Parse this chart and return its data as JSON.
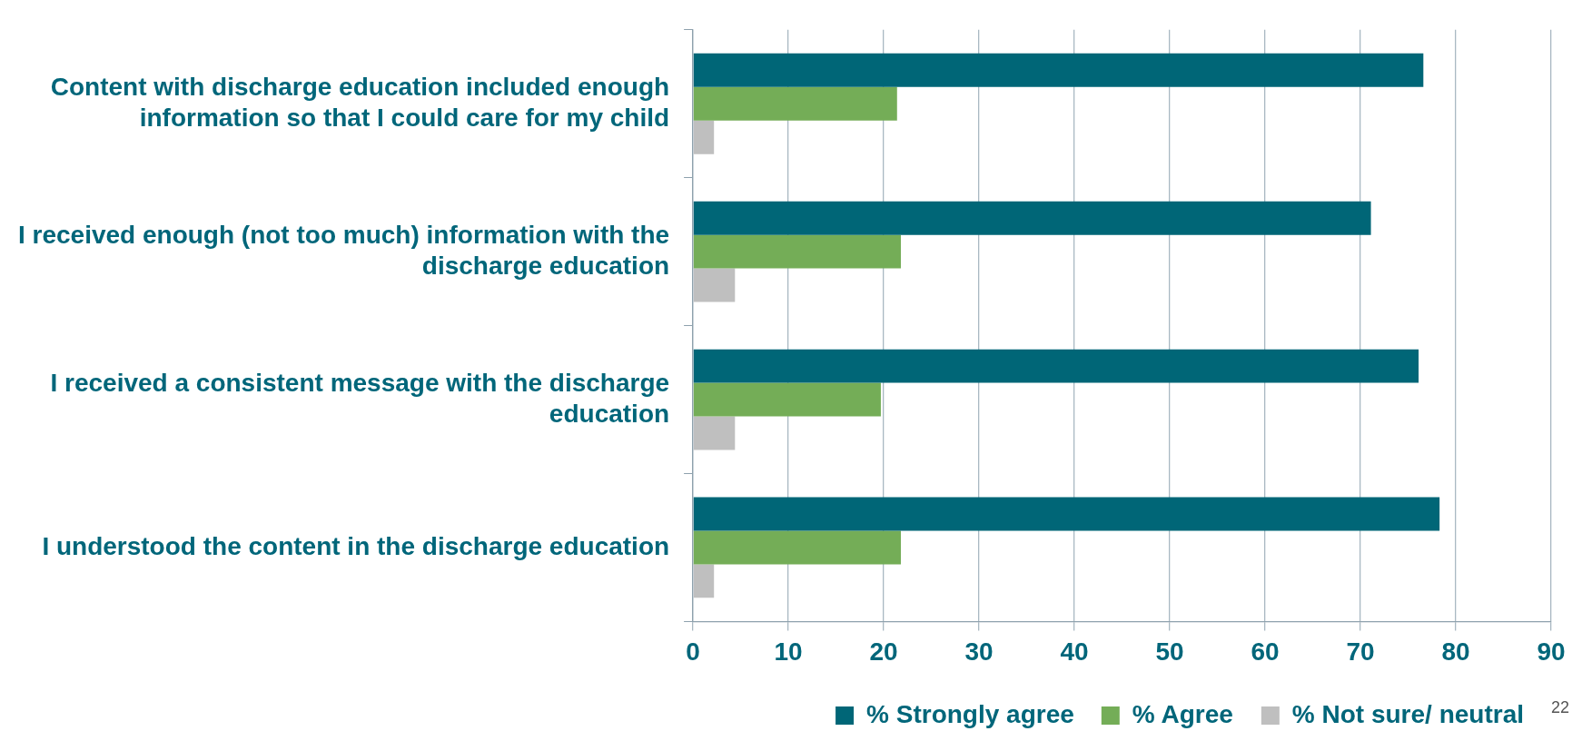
{
  "chart_data": {
    "type": "bar",
    "orientation": "horizontal",
    "categories": [
      "Content with discharge education included enough information so that I could care for my child",
      "I received enough (not too much) information with the discharge education",
      "I received a consistent message with the discharge education",
      "I understood the content in the discharge education"
    ],
    "series": [
      {
        "name": "% Strongly agree",
        "color": "#006677",
        "values": [
          76.6,
          71.1,
          76.1,
          78.3
        ]
      },
      {
        "name": "% Agree",
        "color": "#74ad57",
        "values": [
          21.4,
          21.8,
          19.7,
          21.8
        ]
      },
      {
        "name": "% Not sure/ neutral",
        "color": "#bfbfbf",
        "values": [
          2.2,
          4.4,
          4.4,
          2.2
        ]
      }
    ],
    "xlim": [
      0,
      90
    ],
    "xticks": [
      0,
      10,
      20,
      30,
      40,
      50,
      60,
      70,
      80,
      90
    ],
    "grid": "x",
    "legend": "bottom",
    "annotations": [
      "22"
    ]
  }
}
